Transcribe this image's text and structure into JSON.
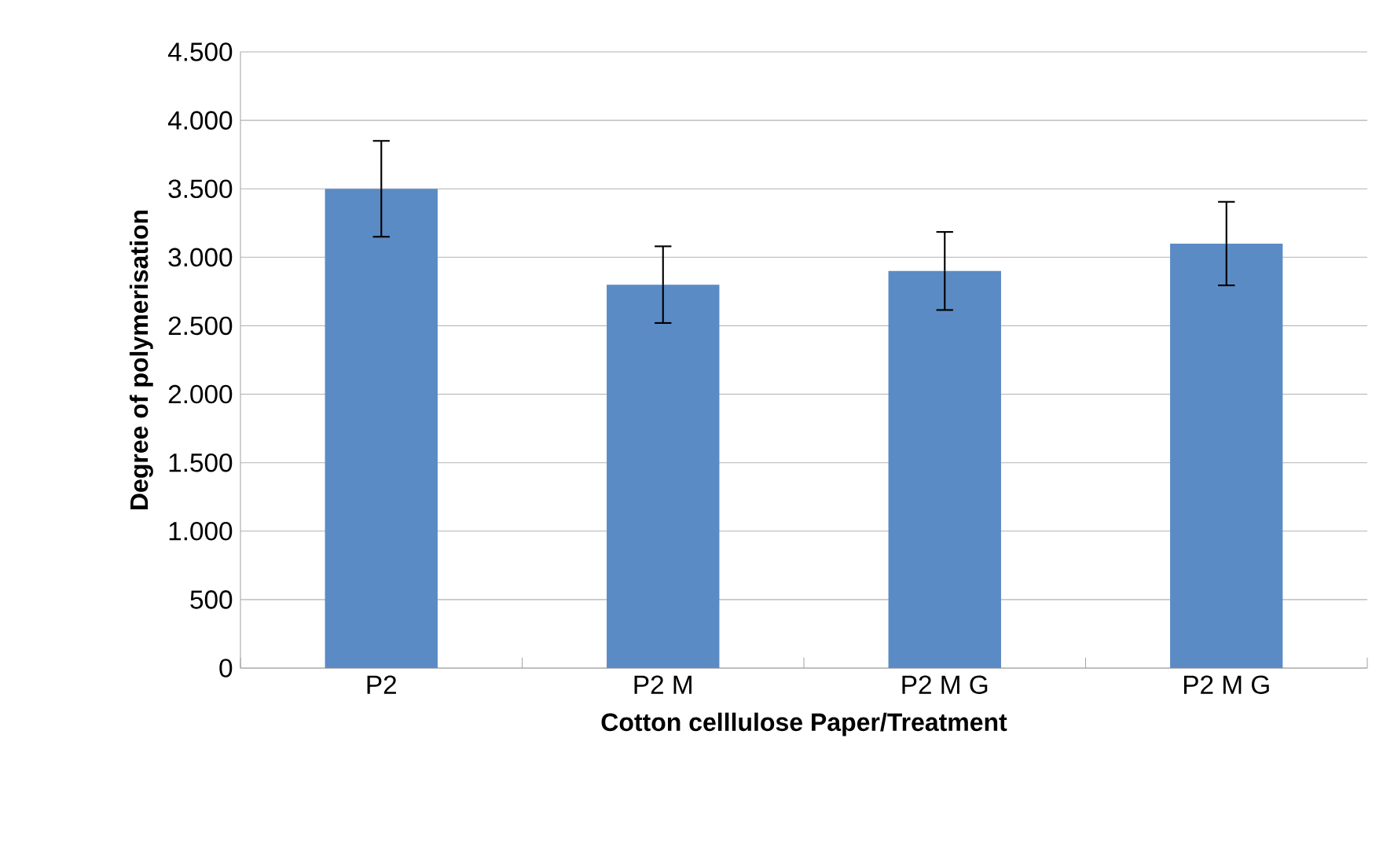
{
  "chart_data": {
    "type": "bar",
    "xlabel": "Cotton celllulose Paper/Treatment",
    "ylabel": "Degree of polymerisation",
    "categories": [
      "P2",
      "P2 M",
      "P2 M G",
      "P2 M G"
    ],
    "values": [
      3500,
      2800,
      2900,
      3100
    ],
    "errors": [
      350,
      280,
      285,
      305
    ],
    "color": "#5b8bc4",
    "ylim": [
      0,
      4500
    ],
    "yticks": [
      0,
      500,
      {
        "value": 1000,
        "label": "1.000"
      },
      {
        "value": 1500,
        "label": "1.500"
      },
      {
        "value": 2000,
        "label": "2.000"
      },
      {
        "value": 2500,
        "label": "2.500"
      },
      {
        "value": 3000,
        "label": "3.000"
      },
      {
        "value": 3500,
        "label": "3.500"
      },
      {
        "value": 4000,
        "label": "4.000"
      },
      {
        "value": 4500,
        "label": "4.500"
      }
    ],
    "grid": "y"
  }
}
